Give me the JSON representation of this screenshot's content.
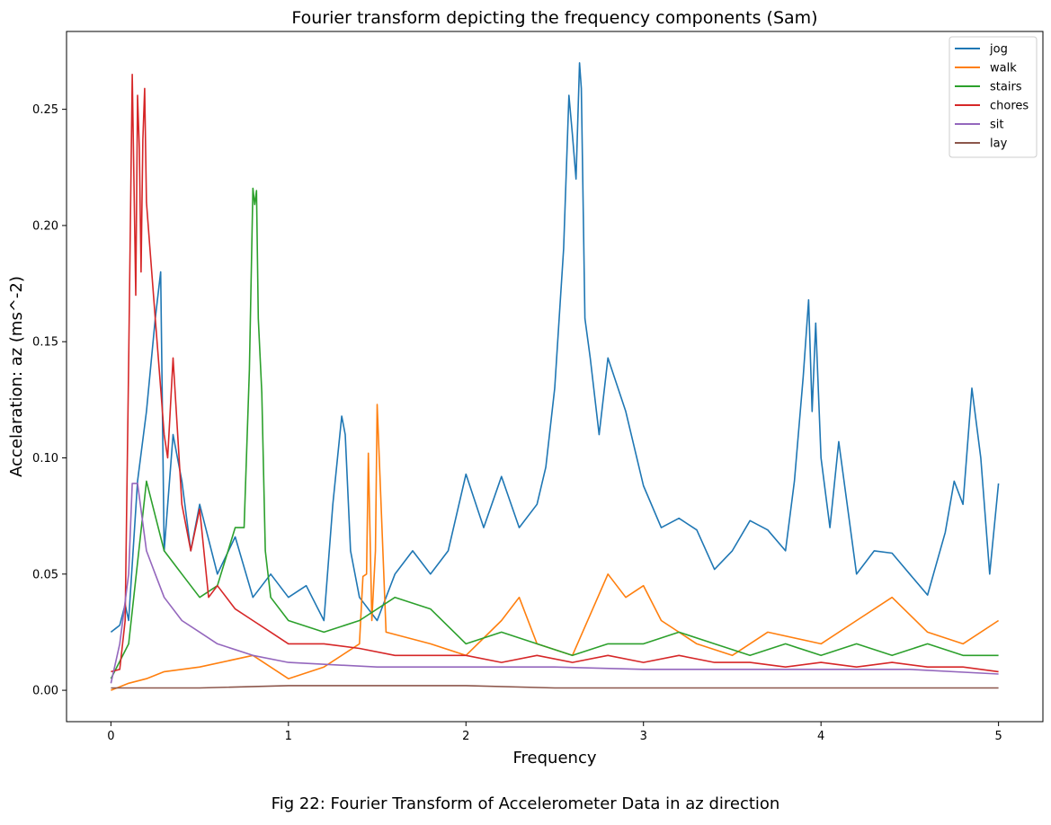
{
  "caption": "Fig 22: Fourier Transform of Accelerometer Data in az direction",
  "chart_data": {
    "type": "line",
    "title": "Fourier transform depicting the frequency components (Sam)",
    "xlabel": "Frequency",
    "ylabel": "Accelaration: az (ms^-2)",
    "xlim": [
      -0.25,
      5.25
    ],
    "ylim": [
      -0.0135,
      0.2835
    ],
    "xticks": [
      0,
      1,
      2,
      3,
      4,
      5
    ],
    "xtick_labels": [
      "0",
      "1",
      "2",
      "3",
      "4",
      "5"
    ],
    "yticks": [
      0.0,
      0.05,
      0.1,
      0.15,
      0.2,
      0.25
    ],
    "ytick_labels": [
      "0.00",
      "0.05",
      "0.10",
      "0.15",
      "0.20",
      "0.25"
    ],
    "grid": false,
    "legend_position": "top-right",
    "series": [
      {
        "name": "jog",
        "color": "#1f77b4",
        "x": [
          0.0,
          0.05,
          0.08,
          0.1,
          0.15,
          0.2,
          0.25,
          0.28,
          0.3,
          0.35,
          0.4,
          0.45,
          0.5,
          0.6,
          0.7,
          0.8,
          0.9,
          1.0,
          1.1,
          1.2,
          1.25,
          1.3,
          1.32,
          1.35,
          1.4,
          1.5,
          1.6,
          1.7,
          1.8,
          1.9,
          2.0,
          2.1,
          2.2,
          2.3,
          2.4,
          2.45,
          2.5,
          2.55,
          2.58,
          2.6,
          2.62,
          2.64,
          2.65,
          2.67,
          2.7,
          2.75,
          2.8,
          2.9,
          3.0,
          3.1,
          3.2,
          3.3,
          3.4,
          3.5,
          3.6,
          3.7,
          3.8,
          3.85,
          3.9,
          3.93,
          3.95,
          3.97,
          4.0,
          4.05,
          4.1,
          4.2,
          4.3,
          4.4,
          4.5,
          4.6,
          4.7,
          4.75,
          4.8,
          4.85,
          4.9,
          4.95,
          5.0
        ],
        "y": [
          0.025,
          0.028,
          0.037,
          0.03,
          0.09,
          0.12,
          0.16,
          0.18,
          0.06,
          0.11,
          0.09,
          0.06,
          0.08,
          0.05,
          0.066,
          0.04,
          0.05,
          0.04,
          0.045,
          0.03,
          0.08,
          0.118,
          0.11,
          0.06,
          0.04,
          0.03,
          0.05,
          0.06,
          0.05,
          0.06,
          0.093,
          0.07,
          0.092,
          0.07,
          0.08,
          0.096,
          0.13,
          0.19,
          0.256,
          0.239,
          0.22,
          0.27,
          0.259,
          0.16,
          0.143,
          0.11,
          0.143,
          0.12,
          0.088,
          0.07,
          0.074,
          0.069,
          0.052,
          0.06,
          0.073,
          0.069,
          0.06,
          0.09,
          0.135,
          0.168,
          0.12,
          0.158,
          0.1,
          0.07,
          0.107,
          0.05,
          0.06,
          0.059,
          0.05,
          0.041,
          0.068,
          0.09,
          0.08,
          0.13,
          0.1,
          0.05,
          0.089
        ]
      },
      {
        "name": "walk",
        "color": "#ff7f0e",
        "x": [
          0.0,
          0.1,
          0.2,
          0.3,
          0.5,
          0.8,
          1.0,
          1.2,
          1.4,
          1.42,
          1.44,
          1.45,
          1.47,
          1.49,
          1.5,
          1.55,
          1.8,
          2.0,
          2.2,
          2.3,
          2.4,
          2.6,
          2.8,
          2.9,
          3.0,
          3.1,
          3.3,
          3.5,
          3.7,
          4.0,
          4.2,
          4.4,
          4.6,
          4.8,
          5.0
        ],
        "y": [
          0.0,
          0.003,
          0.005,
          0.008,
          0.01,
          0.015,
          0.005,
          0.01,
          0.02,
          0.049,
          0.05,
          0.102,
          0.03,
          0.06,
          0.123,
          0.025,
          0.02,
          0.015,
          0.03,
          0.04,
          0.02,
          0.015,
          0.05,
          0.04,
          0.045,
          0.03,
          0.02,
          0.015,
          0.025,
          0.02,
          0.03,
          0.04,
          0.025,
          0.02,
          0.03
        ]
      },
      {
        "name": "stairs",
        "color": "#2ca02c",
        "x": [
          0.0,
          0.1,
          0.2,
          0.3,
          0.4,
          0.5,
          0.6,
          0.7,
          0.75,
          0.78,
          0.8,
          0.81,
          0.82,
          0.83,
          0.85,
          0.87,
          0.9,
          1.0,
          1.2,
          1.4,
          1.6,
          1.8,
          2.0,
          2.2,
          2.4,
          2.6,
          2.8,
          3.0,
          3.2,
          3.4,
          3.6,
          3.8,
          4.0,
          4.2,
          4.4,
          4.6,
          4.8,
          5.0
        ],
        "y": [
          0.005,
          0.02,
          0.09,
          0.06,
          0.05,
          0.04,
          0.045,
          0.07,
          0.07,
          0.138,
          0.216,
          0.209,
          0.215,
          0.16,
          0.128,
          0.06,
          0.04,
          0.03,
          0.025,
          0.03,
          0.04,
          0.035,
          0.02,
          0.025,
          0.02,
          0.015,
          0.02,
          0.02,
          0.025,
          0.02,
          0.015,
          0.02,
          0.015,
          0.02,
          0.015,
          0.02,
          0.015,
          0.015
        ]
      },
      {
        "name": "chores",
        "color": "#d62728",
        "x": [
          0.0,
          0.05,
          0.08,
          0.1,
          0.12,
          0.14,
          0.15,
          0.16,
          0.17,
          0.18,
          0.19,
          0.2,
          0.22,
          0.25,
          0.28,
          0.3,
          0.32,
          0.35,
          0.4,
          0.45,
          0.5,
          0.55,
          0.6,
          0.7,
          0.8,
          0.9,
          1.0,
          1.2,
          1.4,
          1.6,
          1.8,
          2.0,
          2.2,
          2.4,
          2.6,
          2.8,
          3.0,
          3.2,
          3.4,
          3.6,
          3.8,
          4.0,
          4.2,
          4.4,
          4.6,
          4.8,
          5.0
        ],
        "y": [
          0.008,
          0.009,
          0.03,
          0.141,
          0.265,
          0.17,
          0.256,
          0.233,
          0.18,
          0.237,
          0.259,
          0.21,
          0.19,
          0.16,
          0.13,
          0.11,
          0.1,
          0.143,
          0.08,
          0.06,
          0.078,
          0.04,
          0.045,
          0.035,
          0.03,
          0.025,
          0.02,
          0.02,
          0.018,
          0.015,
          0.015,
          0.015,
          0.012,
          0.015,
          0.012,
          0.015,
          0.012,
          0.015,
          0.012,
          0.012,
          0.01,
          0.012,
          0.01,
          0.012,
          0.01,
          0.01,
          0.008
        ]
      },
      {
        "name": "sit",
        "color": "#9467bd",
        "x": [
          0.0,
          0.05,
          0.1,
          0.12,
          0.15,
          0.2,
          0.25,
          0.3,
          0.4,
          0.5,
          0.6,
          0.8,
          1.0,
          1.5,
          2.0,
          2.5,
          3.0,
          3.5,
          4.0,
          4.5,
          5.0
        ],
        "y": [
          0.003,
          0.02,
          0.05,
          0.089,
          0.089,
          0.06,
          0.05,
          0.04,
          0.03,
          0.025,
          0.02,
          0.015,
          0.012,
          0.01,
          0.01,
          0.01,
          0.009,
          0.009,
          0.009,
          0.009,
          0.007
        ]
      },
      {
        "name": "lay",
        "color": "#8c564b",
        "x": [
          0.0,
          0.5,
          1.0,
          1.5,
          2.0,
          2.5,
          3.0,
          3.5,
          4.0,
          4.5,
          5.0
        ],
        "y": [
          0.001,
          0.001,
          0.002,
          0.002,
          0.002,
          0.001,
          0.001,
          0.001,
          0.001,
          0.001,
          0.001
        ]
      }
    ]
  }
}
